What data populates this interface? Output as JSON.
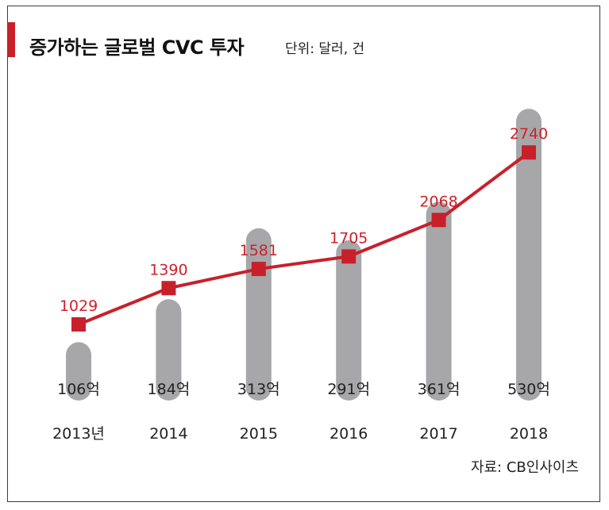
{
  "header": {
    "title": "증가하는 글로벌 CVC 투자",
    "unit": "단위: 달러, 건"
  },
  "footer": {
    "source": "자료: CB인사이츠"
  },
  "colors": {
    "accent": "#c8202a",
    "line": "#c8202a",
    "bar": "#a7a7a9",
    "text": "#222222"
  },
  "chart_data": {
    "type": "bar+line",
    "title": "증가하는 글로벌 CVC 투자",
    "categories": [
      "2013년",
      "2014",
      "2015",
      "2016",
      "2017",
      "2018"
    ],
    "series": [
      {
        "kind": "bar",
        "values": [
          106,
          184,
          313,
          291,
          361,
          530
        ],
        "labels": [
          "106억",
          "184억",
          "313억",
          "291억",
          "361억",
          "530억"
        ]
      },
      {
        "kind": "line",
        "values": [
          1029,
          1390,
          1581,
          1705,
          2068,
          2740
        ],
        "labels": [
          "1029",
          "1390",
          "1581",
          "1705",
          "2068",
          "2740"
        ]
      }
    ],
    "grid": false,
    "legend": "none"
  }
}
